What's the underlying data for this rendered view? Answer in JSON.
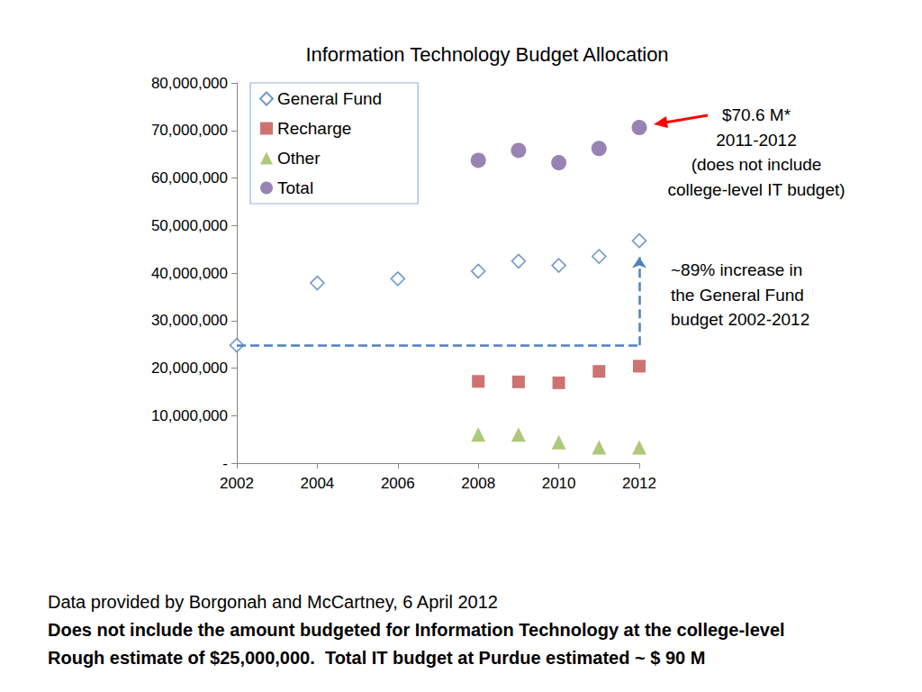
{
  "chart_data": {
    "type": "scatter",
    "title": "Information Technology Budget Allocation",
    "series": [
      {
        "name": "General Fund",
        "color": "#4f81bd",
        "marker": "open diamond",
        "x": [
          2002,
          2004,
          2006,
          2008,
          2009,
          2010,
          2011,
          2012
        ],
        "values": [
          24800000,
          37900000,
          38800000,
          40400000,
          42500000,
          41600000,
          43500000,
          46800000
        ]
      },
      {
        "name": "Recharge",
        "color": "#c0504d",
        "marker": "square",
        "x": [
          2008,
          2009,
          2010,
          2011,
          2012
        ],
        "values": [
          17200000,
          17100000,
          16900000,
          19300000,
          20400000
        ]
      },
      {
        "name": "Other",
        "color": "#9bbb59",
        "marker": "triangle",
        "x": [
          2008,
          2009,
          2010,
          2011,
          2012
        ],
        "values": [
          6000000,
          6000000,
          4400000,
          3300000,
          3300000
        ]
      },
      {
        "name": "Total",
        "color": "#8064a2",
        "marker": "circle",
        "x": [
          2008,
          2009,
          2010,
          2011,
          2012
        ],
        "values": [
          63700000,
          65800000,
          63200000,
          66200000,
          70600000
        ]
      }
    ],
    "xlim": [
      2002,
      2012
    ],
    "xticks": [
      2002,
      2004,
      2006,
      2008,
      2010,
      2012
    ],
    "ylim": [
      0,
      80000000
    ],
    "yticks": [
      {
        "value": 0,
        "label": "-"
      },
      {
        "value": 10000000,
        "label": "10,000,000"
      },
      {
        "value": 20000000,
        "label": "20,000,000"
      },
      {
        "value": 30000000,
        "label": "30,000,000"
      },
      {
        "value": 40000000,
        "label": "40,000,000"
      },
      {
        "value": 50000000,
        "label": "50,000,000"
      },
      {
        "value": 60000000,
        "label": "60,000,000"
      },
      {
        "value": 70000000,
        "label": "70,000,000"
      },
      {
        "value": 80000000,
        "label": "80,000,000"
      }
    ],
    "grid": false,
    "legend": "upper left",
    "annotations": [
      {
        "text": [
          "$70.6 M*",
          "2011-2012",
          "(does not include",
          "college-level IT budget)"
        ]
      },
      {
        "text": [
          "~89% increase in",
          "the General Fund",
          "budget 2002-2012"
        ]
      }
    ],
    "source": "Data provided by Borgonah and McCartney, 6 April 2012",
    "notes": [
      "Does not include the amount budgeted for Information Technology at the college-level",
      "Rough estimate of $25,000,000.  Total IT budget at Purdue estimated ~ $ 90 M"
    ]
  }
}
